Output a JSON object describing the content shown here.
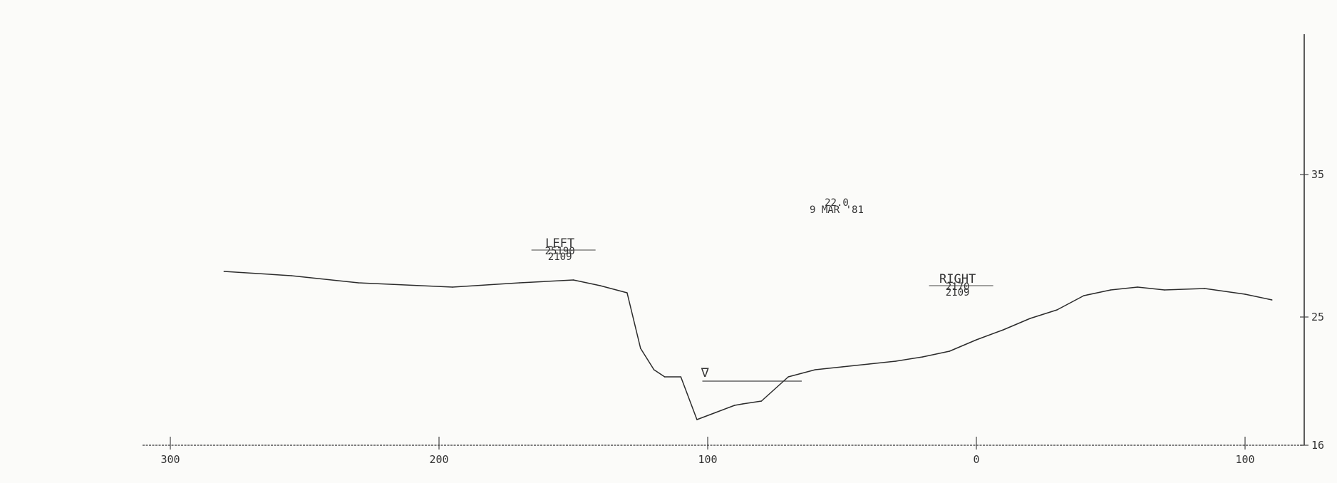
{
  "chart_data": {
    "type": "line",
    "title": "",
    "xlabel": "",
    "ylabel": "",
    "xlim": [
      -350,
      118
    ],
    "ylim": [
      16,
      35
    ],
    "x_ticks": [
      -300,
      -200,
      -100,
      0,
      100
    ],
    "x_tick_labels": [
      "300",
      "200",
      "100",
      "0",
      "100"
    ],
    "y_ticks": [
      16,
      25,
      35
    ],
    "y_tick_labels": [
      "16",
      "25",
      "35"
    ],
    "grid": false,
    "series": [
      {
        "name": "",
        "x": [
          -280,
          -255,
          -230,
          -195,
          -170,
          -150,
          -140,
          -130,
          -125,
          -120,
          -116,
          -110,
          -104,
          -97,
          -90,
          -87,
          -80,
          -70,
          -60,
          -50,
          -40,
          -30,
          -20,
          -10,
          0,
          10,
          20,
          30,
          40,
          50,
          60,
          70,
          85,
          100,
          110
        ],
        "y": [
          28.2,
          27.9,
          27.4,
          27.1,
          27.4,
          27.6,
          27.2,
          26.7,
          22.8,
          21.3,
          20.8,
          20.8,
          17.8,
          18.3,
          18.8,
          18.9,
          19.1,
          20.8,
          21.3,
          21.5,
          21.7,
          21.9,
          22.2,
          22.6,
          23.4,
          24.1,
          24.9,
          25.5,
          26.5,
          26.9,
          27.1,
          26.9,
          27.0,
          26.6,
          26.2
        ]
      }
    ],
    "annotations": [
      {
        "text": "22.0",
        "x": -52,
        "y": 32.8
      },
      {
        "text": "9 MAR '81",
        "x": -52,
        "y": 32.3
      },
      {
        "text": "LEFT",
        "x": -155,
        "y": 29.9
      },
      {
        "text": "25190",
        "x": -155,
        "y": 29.4
      },
      {
        "text": "2109",
        "x": -155,
        "y": 29.0
      },
      {
        "text": "RIGHT",
        "x": -7,
        "y": 27.4
      },
      {
        "text": "2170",
        "x": -7,
        "y": 26.9
      },
      {
        "text": "2109",
        "x": -7,
        "y": 26.5
      },
      {
        "text": "∇",
        "x": -101,
        "y": 20.8
      }
    ],
    "water_level": {
      "y": 20.5,
      "x_from": -102,
      "x_to": -65
    }
  }
}
